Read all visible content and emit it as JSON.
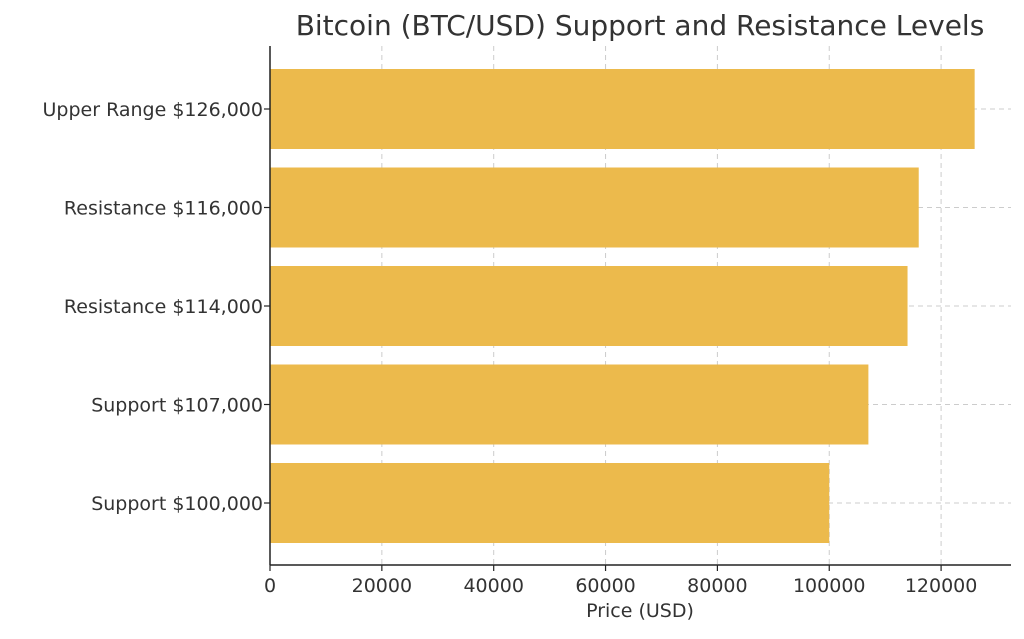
{
  "chart_data": {
    "type": "bar",
    "orientation": "horizontal",
    "title": "Bitcoin (BTC/USD) Support and Resistance Levels",
    "xlabel": "Price (USD)",
    "ylabel": "",
    "categories": [
      "Upper Range $126,000",
      "Resistance $116,000",
      "Resistance $114,000",
      "Support $107,000",
      "Support $100,000"
    ],
    "values": [
      126000,
      116000,
      114000,
      107000,
      100000
    ],
    "xlim": [
      0,
      132500
    ],
    "xticks": [
      0,
      20000,
      40000,
      60000,
      80000,
      100000,
      120000
    ],
    "xtick_labels": [
      "0",
      "20000",
      "40000",
      "60000",
      "80000",
      "100000",
      "120000"
    ],
    "grid": true,
    "bar_color": "#ecba4c",
    "grid_color": "#cccccc",
    "axis_color": "#222222",
    "text_color": "#333333"
  }
}
